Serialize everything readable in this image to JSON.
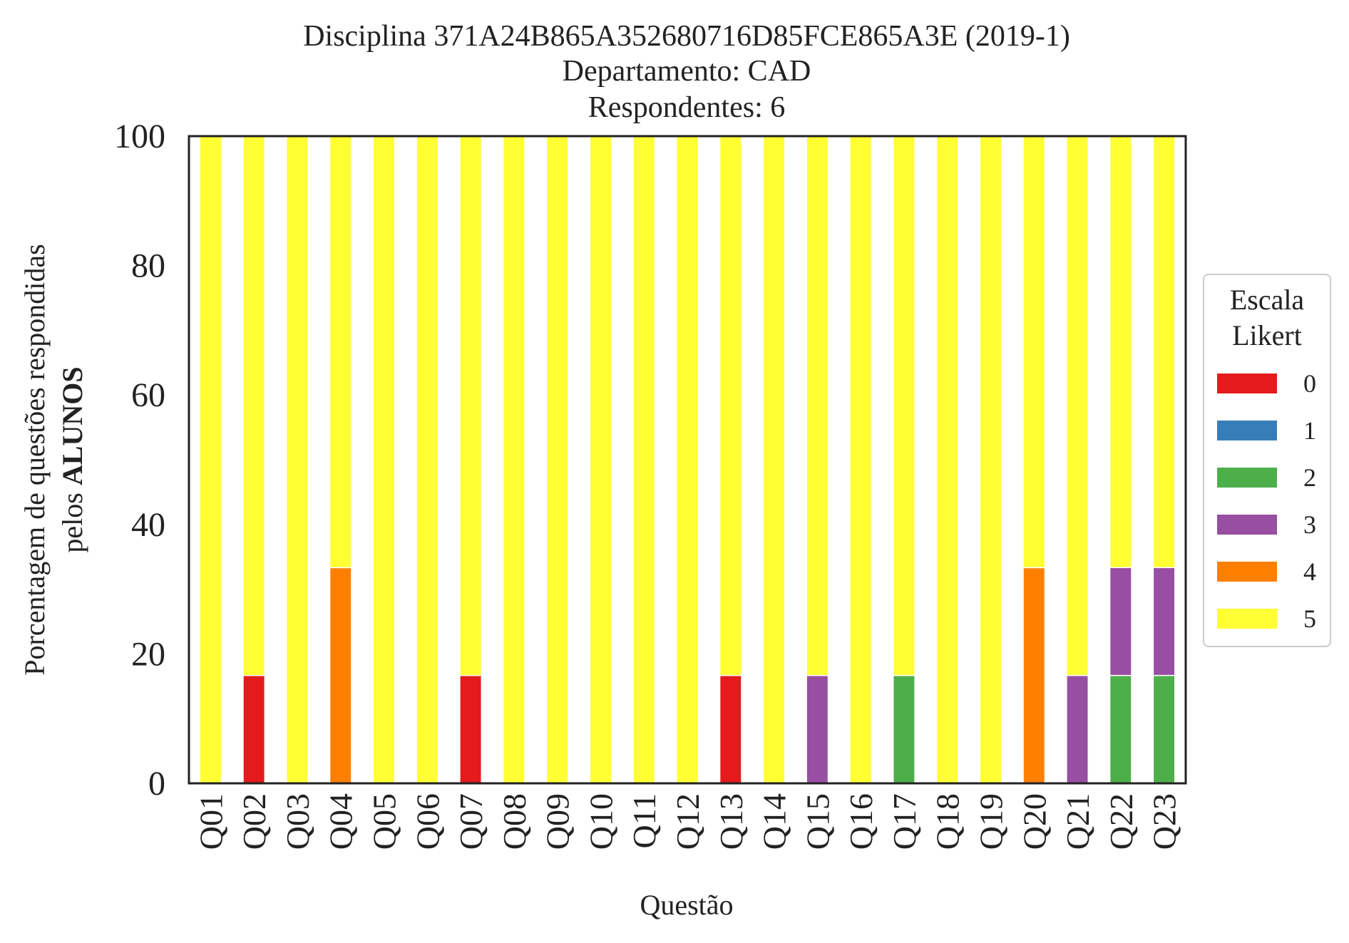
{
  "chart_data": {
    "type": "bar",
    "stacked": true,
    "title": [
      "Disciplina 371A24B865A352680716D85FCE865A3E (2019-1)",
      "Departamento: CAD",
      "Respondentes: 6"
    ],
    "xlabel": "Questão",
    "ylabel_line1": "Porcentagem de questões respondidas",
    "ylabel_line2_prefix": "pelos ",
    "ylabel_line2_bold": "ALUNOS",
    "ylim": [
      0,
      100
    ],
    "yticks": [
      0,
      20,
      40,
      60,
      80,
      100
    ],
    "grid": false,
    "legend": {
      "title": [
        "Escala",
        "Likert"
      ],
      "placement": "center-right, outside plot"
    },
    "categories": [
      "Q01",
      "Q02",
      "Q03",
      "Q04",
      "Q05",
      "Q06",
      "Q07",
      "Q08",
      "Q09",
      "Q10",
      "Q11",
      "Q12",
      "Q13",
      "Q14",
      "Q15",
      "Q16",
      "Q17",
      "Q18",
      "Q19",
      "Q20",
      "Q21",
      "Q22",
      "Q23"
    ],
    "series": [
      {
        "name": "0",
        "color": "#e41a1c",
        "values": [
          0,
          16.67,
          0,
          0,
          0,
          0,
          16.67,
          0,
          0,
          0,
          0,
          0,
          16.67,
          0,
          0,
          0,
          0,
          0,
          0,
          0,
          0,
          0,
          0
        ]
      },
      {
        "name": "1",
        "color": "#377eb8",
        "values": [
          0,
          0,
          0,
          0,
          0,
          0,
          0,
          0,
          0,
          0,
          0,
          0,
          0,
          0,
          0,
          0,
          0,
          0,
          0,
          0,
          0,
          0,
          0
        ]
      },
      {
        "name": "2",
        "color": "#4daf4a",
        "values": [
          0,
          0,
          0,
          0,
          0,
          0,
          0,
          0,
          0,
          0,
          0,
          0,
          0,
          0,
          0,
          0,
          16.67,
          0,
          0,
          0,
          0,
          16.67,
          16.67
        ]
      },
      {
        "name": "3",
        "color": "#984ea3",
        "values": [
          0,
          0,
          0,
          0,
          0,
          0,
          0,
          0,
          0,
          0,
          0,
          0,
          0,
          0,
          16.67,
          0,
          0,
          0,
          0,
          0,
          16.67,
          16.67,
          16.67
        ]
      },
      {
        "name": "4",
        "color": "#ff7f00",
        "values": [
          0,
          0,
          0,
          33.33,
          0,
          0,
          0,
          0,
          0,
          0,
          0,
          0,
          0,
          0,
          0,
          0,
          0,
          0,
          0,
          33.33,
          0,
          0,
          0
        ]
      },
      {
        "name": "5",
        "color": "#ffff33",
        "values": [
          100,
          83.33,
          100,
          66.67,
          100,
          100,
          83.33,
          100,
          100,
          100,
          100,
          100,
          83.33,
          100,
          83.33,
          100,
          83.33,
          100,
          100,
          66.67,
          83.33,
          66.67,
          66.67
        ]
      }
    ]
  }
}
